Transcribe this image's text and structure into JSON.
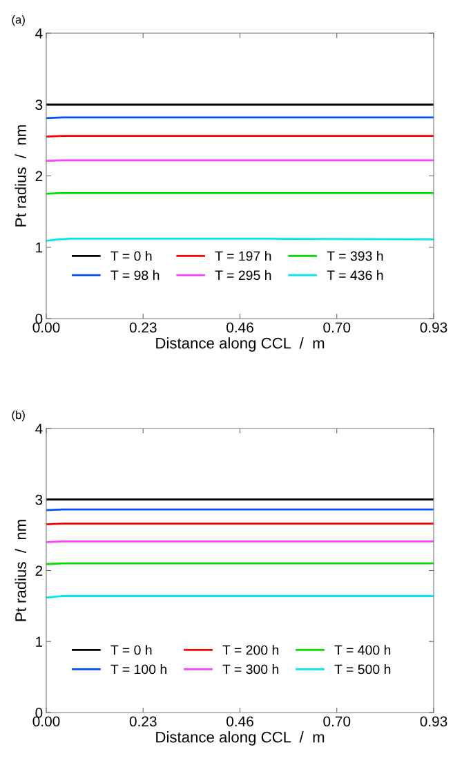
{
  "chart_data": [
    {
      "type": "line",
      "title": "(a)",
      "xlabel": "Distance along CCL  /  m",
      "ylabel": "Pt radius  /  nm",
      "xlim": [
        0,
        0.93
      ],
      "ylim": [
        0,
        4
      ],
      "xticks": [
        {
          "value": 0,
          "label": "0.00"
        },
        {
          "value": 0.2325,
          "label": "0.23"
        },
        {
          "value": 0.465,
          "label": "0.46"
        },
        {
          "value": 0.6975,
          "label": "0.70"
        },
        {
          "value": 0.93,
          "label": "0.93"
        }
      ],
      "yticks": [
        0,
        1,
        2,
        3,
        4
      ],
      "grid": false,
      "legend": "bottom left",
      "series": [
        {
          "name": "T = 0 h",
          "color": "#000000",
          "x": [
            0,
            0.93
          ],
          "values": [
            3.0,
            3.0
          ]
        },
        {
          "name": "T = 98 h",
          "color": "#0050ff",
          "x": [
            0,
            0.04,
            0.93
          ],
          "values": [
            2.81,
            2.82,
            2.82
          ]
        },
        {
          "name": "T = 197 h",
          "color": "#ff0000",
          "x": [
            0,
            0.04,
            0.93
          ],
          "values": [
            2.55,
            2.56,
            2.56
          ]
        },
        {
          "name": "T = 295 h",
          "color": "#ff40ff",
          "x": [
            0,
            0.04,
            0.93
          ],
          "values": [
            2.21,
            2.22,
            2.22
          ]
        },
        {
          "name": "T = 393 h",
          "color": "#00e000",
          "x": [
            0,
            0.03,
            0.93
          ],
          "values": [
            1.75,
            1.76,
            1.76
          ]
        },
        {
          "name": "T = 436 h",
          "color": "#00e8f0",
          "x": [
            0,
            0.03,
            0.06,
            0.5,
            0.93
          ],
          "values": [
            1.09,
            1.11,
            1.12,
            1.12,
            1.11
          ]
        }
      ]
    },
    {
      "type": "line",
      "title": "(b)",
      "xlabel": "Distance along CCL  /  m",
      "ylabel": "Pt radius  /  nm",
      "xlim": [
        0,
        0.93
      ],
      "ylim": [
        0,
        4
      ],
      "xticks": [
        {
          "value": 0,
          "label": "0.00"
        },
        {
          "value": 0.2325,
          "label": "0.23"
        },
        {
          "value": 0.465,
          "label": "0.46"
        },
        {
          "value": 0.6975,
          "label": "0.70"
        },
        {
          "value": 0.93,
          "label": "0.93"
        }
      ],
      "yticks": [
        0,
        1,
        2,
        3,
        4
      ],
      "grid": false,
      "legend": "bottom left",
      "series": [
        {
          "name": "T = 0 h",
          "color": "#000000",
          "x": [
            0,
            0.93
          ],
          "values": [
            3.0,
            3.0
          ]
        },
        {
          "name": "T = 100 h",
          "color": "#0050ff",
          "x": [
            0,
            0.04,
            0.93
          ],
          "values": [
            2.85,
            2.86,
            2.86
          ]
        },
        {
          "name": "T = 200 h",
          "color": "#ff0000",
          "x": [
            0,
            0.04,
            0.93
          ],
          "values": [
            2.65,
            2.66,
            2.66
          ]
        },
        {
          "name": "T = 300 h",
          "color": "#ff40ff",
          "x": [
            0,
            0.04,
            0.93
          ],
          "values": [
            2.4,
            2.41,
            2.41
          ]
        },
        {
          "name": "T = 400 h",
          "color": "#00e000",
          "x": [
            0,
            0.04,
            0.93
          ],
          "values": [
            2.09,
            2.1,
            2.1
          ]
        },
        {
          "name": "T = 500 h",
          "color": "#00e8f0",
          "x": [
            0,
            0.04,
            0.93
          ],
          "values": [
            1.62,
            1.64,
            1.64
          ]
        }
      ]
    }
  ]
}
